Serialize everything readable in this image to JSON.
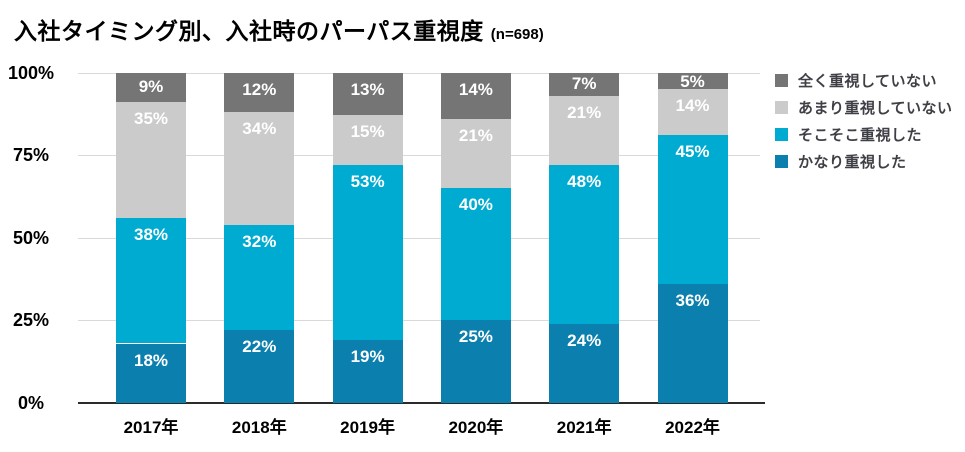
{
  "title": {
    "text": "入社タイミング別、入社時のパーパス重視度",
    "sample": "(n=698)"
  },
  "chart_data": {
    "type": "bar",
    "stacked": true,
    "title": "入社タイミング別、入社時のパーパス重視度 (n=698)",
    "categories": [
      "2017年",
      "2018年",
      "2019年",
      "2020年",
      "2021年",
      "2022年"
    ],
    "series": [
      {
        "name": "かなり重視した",
        "color": "#0b7fae",
        "values": [
          18,
          22,
          19,
          25,
          24,
          36
        ]
      },
      {
        "name": "そこそこ重視した",
        "color": "#00abd2",
        "values": [
          38,
          32,
          53,
          40,
          48,
          45
        ]
      },
      {
        "name": "あまり重視していない",
        "color": "#cbcbcb",
        "values": [
          35,
          34,
          15,
          21,
          21,
          14
        ]
      },
      {
        "name": "全く重視していない",
        "color": "#757575",
        "values": [
          9,
          12,
          13,
          14,
          7,
          5
        ]
      }
    ],
    "value_suffix": "%",
    "data_labels": true,
    "y_ticks": [
      0,
      25,
      50,
      75,
      100
    ],
    "y_tick_labels": [
      "0%",
      "25%",
      "50%",
      "75%",
      "100%"
    ],
    "ylim": [
      0,
      100
    ],
    "grid": true,
    "legend_position": "right",
    "legend_order_top_to_bottom": [
      "全く重視していない",
      "あまり重視していない",
      "そこそこ重視した",
      "かなり重視した"
    ]
  },
  "colors": {
    "grid": "#d9d9d9",
    "axis": "#2b2b2b",
    "bar_label": "#ffffff",
    "tick_label": "#000000",
    "legend_label": "#3f3f46",
    "background": "#ffffff"
  }
}
